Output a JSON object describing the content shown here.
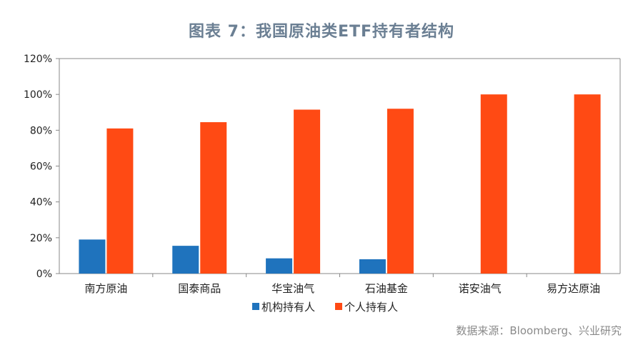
{
  "title": "图表 7：我国原油类ETF持有者结构",
  "source": "数据来源：Bloomberg、兴业研究",
  "colors": {
    "title": "#6b7f93",
    "source": "#8a8a8a",
    "axis": "#888888",
    "text": "#222222"
  },
  "chart_data": {
    "type": "bar",
    "categories": [
      "南方原油",
      "国泰商品",
      "华宝油气",
      "石油基金",
      "诺安油气",
      "易方达原油"
    ],
    "series": [
      {
        "name": "机构持有人",
        "color": "#1f73bd",
        "values": [
          19,
          15.5,
          8.5,
          8,
          0,
          0
        ]
      },
      {
        "name": "个人持有人",
        "color": "#ff4a14",
        "values": [
          81,
          84.5,
          91.5,
          92,
          100,
          100
        ]
      }
    ],
    "ylim": [
      0,
      120
    ],
    "yticks": [
      "0%",
      "20%",
      "40%",
      "60%",
      "80%",
      "100%",
      "120%"
    ],
    "y_tick_values": [
      0,
      20,
      40,
      60,
      80,
      100,
      120
    ],
    "grid": false,
    "legend": "bottom-center"
  }
}
